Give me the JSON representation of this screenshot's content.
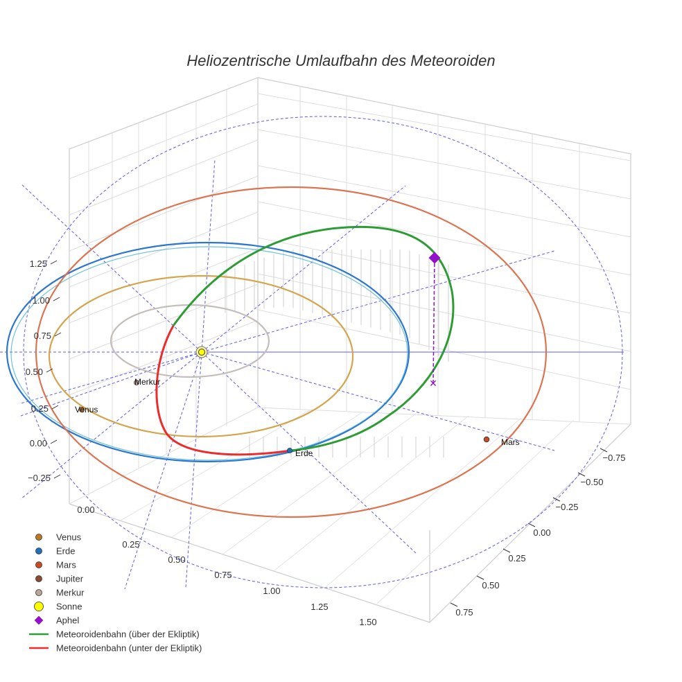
{
  "chart_data": {
    "type": "scatter3d",
    "title": "Heliozentrische Umlaufbahn des Meteoroiden",
    "axes": {
      "x": {
        "ticks": [
          "0.00",
          "0.25",
          "0.50",
          "0.75",
          "1.00",
          "1.25",
          "1.50"
        ],
        "range": [
          0.0,
          1.5
        ]
      },
      "y": {
        "ticks": [
          "−0.75",
          "−0.50",
          "−0.25",
          "0.00",
          "0.25",
          "0.50",
          "0.75"
        ],
        "range": [
          -0.75,
          0.75
        ]
      },
      "z": {
        "ticks": [
          "−0.25",
          "0.00",
          "0.25",
          "0.50",
          "0.75",
          "1.00",
          "1.25"
        ],
        "range": [
          -0.25,
          1.25
        ]
      }
    },
    "planets": [
      {
        "name": "Merkur",
        "color": "#bca49a",
        "orbit_color": "#c4beba"
      },
      {
        "name": "Venus",
        "color": "#c07a1e",
        "orbit_color": "#d4a54c"
      },
      {
        "name": "Erde",
        "color": "#1f6fba",
        "orbit_color": "#2c75d1"
      },
      {
        "name": "Mars",
        "color": "#cc4a22",
        "orbit_color": "#dc7450"
      },
      {
        "name": "Jupiter",
        "color": "#8b4a34",
        "orbit_color": "#8b4a34"
      }
    ],
    "sun": {
      "name": "Sonne",
      "color": "#ffff00"
    },
    "aphel": {
      "name": "Aphel",
      "color": "#9411c9"
    },
    "series": [
      {
        "name": "Meteoroidenbahn (über der Ekliptik)",
        "color": "#2e9c35"
      },
      {
        "name": "Meteoroidenbahn (unter der Ekliptik)",
        "color": "#ee2b2b"
      }
    ]
  },
  "legend": [
    {
      "label": "Venus",
      "kind": "dot",
      "color": "#c07a1e"
    },
    {
      "label": "Erde",
      "kind": "dot",
      "color": "#1f6fba"
    },
    {
      "label": "Mars",
      "kind": "dot",
      "color": "#cc4a22"
    },
    {
      "label": "Jupiter",
      "kind": "dot",
      "color": "#8b4a34"
    },
    {
      "label": "Merkur",
      "kind": "dot",
      "color": "#bca49a"
    },
    {
      "label": "Sonne",
      "kind": "sun",
      "color": "#ffff00"
    },
    {
      "label": "Aphel",
      "kind": "diamond",
      "color": "#9411c9"
    },
    {
      "label": "Meteoroidenbahn (über der Ekliptik)",
      "kind": "line",
      "color": "#2e9c35"
    },
    {
      "label": "Meteoroidenbahn (unter der Ekliptik)",
      "kind": "line",
      "color": "#ee2b2b"
    }
  ]
}
